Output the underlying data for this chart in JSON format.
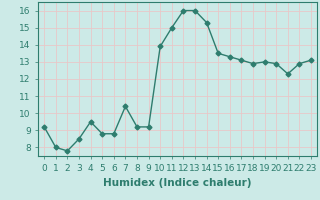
{
  "x": [
    0,
    1,
    2,
    3,
    4,
    5,
    6,
    7,
    8,
    9,
    10,
    11,
    12,
    13,
    14,
    15,
    16,
    17,
    18,
    19,
    20,
    21,
    22,
    23
  ],
  "y": [
    9.2,
    8.0,
    7.8,
    8.5,
    9.5,
    8.8,
    8.8,
    10.4,
    9.2,
    9.2,
    13.9,
    15.0,
    16.0,
    16.0,
    15.3,
    13.5,
    13.3,
    13.1,
    12.9,
    13.0,
    12.9,
    12.3,
    12.9,
    13.1
  ],
  "xlabel": "Humidex (Indice chaleur)",
  "ylim": [
    7.5,
    16.5
  ],
  "xlim": [
    -0.5,
    23.5
  ],
  "yticks": [
    8,
    9,
    10,
    11,
    12,
    13,
    14,
    15,
    16
  ],
  "xtick_labels": [
    "0",
    "1",
    "2",
    "3",
    "4",
    "5",
    "6",
    "7",
    "8",
    "9",
    "10",
    "11",
    "12",
    "13",
    "14",
    "15",
    "16",
    "17",
    "18",
    "19",
    "20",
    "21",
    "22",
    "23"
  ],
  "line_color": "#2e7d6e",
  "marker": "D",
  "marker_size": 2.5,
  "bg_color": "#cceae7",
  "grid_color": "#e8c8c8",
  "font_color": "#2e7d6e",
  "xlabel_color": "#2e5d6e",
  "label_fontsize": 7.5,
  "tick_fontsize": 6.5
}
